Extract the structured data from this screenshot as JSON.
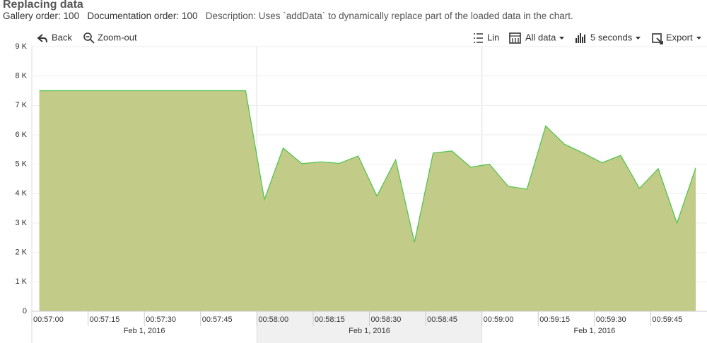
{
  "header": {
    "title": "Replacing data",
    "gallery_order_label": "Gallery order:",
    "gallery_order": 100,
    "documentation_order_label": "Documentation order:",
    "documentation_order": 100,
    "description_label": "Description:",
    "description": "Uses `addData` to dynamically replace part of the loaded data in the chart."
  },
  "toolbar": {
    "back": "Back",
    "zoom_out": "Zoom-out",
    "scale": "Lin",
    "range": "All data",
    "interval": "5 seconds",
    "export": "Export"
  },
  "chart_data": {
    "type": "area",
    "x": [
      "00:57:02",
      "00:57:07",
      "00:57:12",
      "00:57:17",
      "00:57:22",
      "00:57:27",
      "00:57:32",
      "00:57:37",
      "00:57:42",
      "00:57:47",
      "00:57:52",
      "00:57:57",
      "00:58:02",
      "00:58:07",
      "00:58:12",
      "00:58:17",
      "00:58:22",
      "00:58:27",
      "00:58:32",
      "00:58:37",
      "00:58:42",
      "00:58:47",
      "00:58:52",
      "00:58:57",
      "00:59:02",
      "00:59:07",
      "00:59:12",
      "00:59:17",
      "00:59:22",
      "00:59:27",
      "00:59:32",
      "00:59:37",
      "00:59:42",
      "00:59:47",
      "00:59:52",
      "00:59:57"
    ],
    "series": [
      {
        "color": "#4cc44c",
        "fill": "#c2cb87",
        "values": [
          7500,
          7500,
          7500,
          7500,
          7500,
          7500,
          7500,
          7500,
          7500,
          7500,
          7500,
          7500,
          3800,
          5550,
          5020,
          5080,
          5030,
          5280,
          3920,
          5150,
          2350,
          5380,
          5450,
          4900,
          5000,
          4250,
          4150,
          6300,
          5680,
          5380,
          5050,
          5300,
          4180,
          4850,
          3000,
          4880
        ]
      }
    ],
    "xlim": [
      "00:57:00",
      "01:00:00"
    ],
    "xticks": [
      "00:57:00",
      "00:57:15",
      "00:57:30",
      "00:57:45",
      "00:58:00",
      "00:58:15",
      "00:58:30",
      "00:58:45",
      "00:59:00",
      "00:59:15",
      "00:59:30",
      "00:59:45"
    ],
    "x_groups": [
      {
        "label": "Feb 1, 2016",
        "start": "00:57:00",
        "end": "00:58:00"
      },
      {
        "label": "Feb 1, 2016",
        "start": "00:58:00",
        "end": "00:59:00"
      },
      {
        "label": "Feb 1, 2016",
        "start": "00:59:00",
        "end": "01:00:00"
      }
    ],
    "ylim": [
      0,
      9000
    ],
    "yticks": [
      0,
      {
        "value": 1000,
        "label": "1 K"
      },
      {
        "value": 2000,
        "label": "2 K"
      },
      {
        "value": 3000,
        "label": "3 K"
      },
      {
        "value": 4000,
        "label": "4 K"
      },
      {
        "value": 5000,
        "label": "5 K"
      },
      {
        "value": 6000,
        "label": "6 K"
      },
      {
        "value": 7000,
        "label": "7 K"
      },
      {
        "value": 8000,
        "label": "8 K"
      },
      {
        "value": 9000,
        "label": "9 K"
      }
    ],
    "grid": true
  }
}
